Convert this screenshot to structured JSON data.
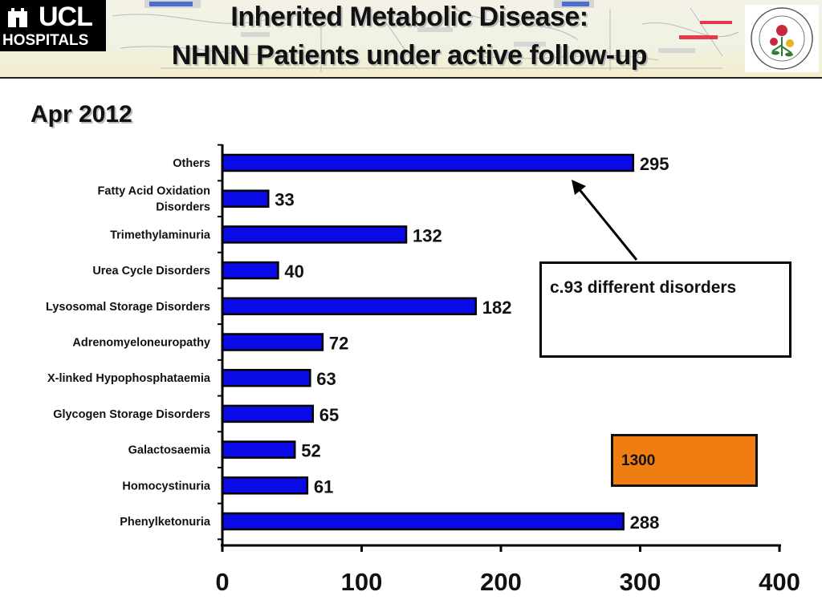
{
  "header": {
    "logo_line1": "UCL",
    "logo_line2": "HOSPITALS",
    "title_line1": "Inherited Metabolic Disease:",
    "title_line2": "NHNN Patients under active follow-up"
  },
  "date_label": "Apr 2012",
  "callout": {
    "text": "c.93 different disorders"
  },
  "total": {
    "text": "1300"
  },
  "colors": {
    "bar": "#0a0ae6",
    "callout_fill": "#ef7d12"
  },
  "chart_data": {
    "type": "bar",
    "orientation": "horizontal",
    "title": "",
    "xlabel": "",
    "ylabel": "",
    "categories": [
      [
        "Others"
      ],
      [
        "Fatty Acid Oxidation",
        "Disorders"
      ],
      [
        "Trimethylaminuria"
      ],
      [
        "Urea Cycle Disorders"
      ],
      [
        "Lysosomal Storage Disorders"
      ],
      [
        "Adrenomyeloneuropathy"
      ],
      [
        "X-linked Hypophosphataemia"
      ],
      [
        "Glycogen Storage Disorders"
      ],
      [
        "Galactosaemia"
      ],
      [
        "Homocystinuria"
      ],
      [
        "Phenylketonuria"
      ]
    ],
    "values": [
      295,
      33,
      132,
      40,
      182,
      72,
      63,
      65,
      52,
      61,
      288
    ],
    "xlim": [
      0,
      400
    ],
    "xticks": [
      0,
      100,
      200,
      300,
      400
    ],
    "grid": false,
    "legend": "none"
  }
}
